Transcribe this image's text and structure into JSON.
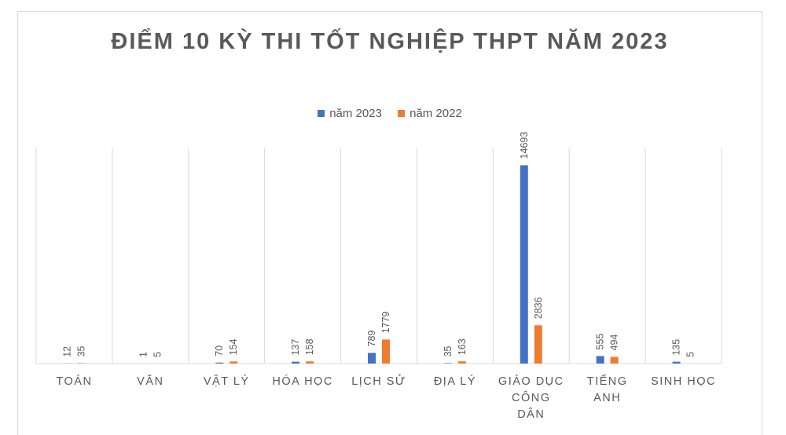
{
  "chart_data": {
    "type": "bar",
    "title": "ĐIỂM 10 KỲ THI TỐT NGHIỆP THPT NĂM 2023",
    "xlabel": "",
    "ylabel": "",
    "categories": [
      "TOÁN",
      "VĂN",
      "VẬT LÝ",
      "HÓA HỌC",
      "LỊCH SỬ",
      "ĐỊA LÝ",
      "GIÁO DỤC CÔNG DÂN",
      "TIẾNG ANH",
      "SINH HỌC"
    ],
    "series": [
      {
        "name": "năm 2023",
        "color": "#4472c4",
        "values": [
          12,
          1,
          70,
          137,
          789,
          35,
          14693,
          555,
          135
        ]
      },
      {
        "name": "năm 2022",
        "color": "#ed7d31",
        "values": [
          35,
          5,
          154,
          158,
          1779,
          163,
          2836,
          494,
          5
        ]
      }
    ],
    "ylim": [
      0,
      16000
    ],
    "grid": false,
    "legend_position": "top",
    "data_labels": true
  }
}
